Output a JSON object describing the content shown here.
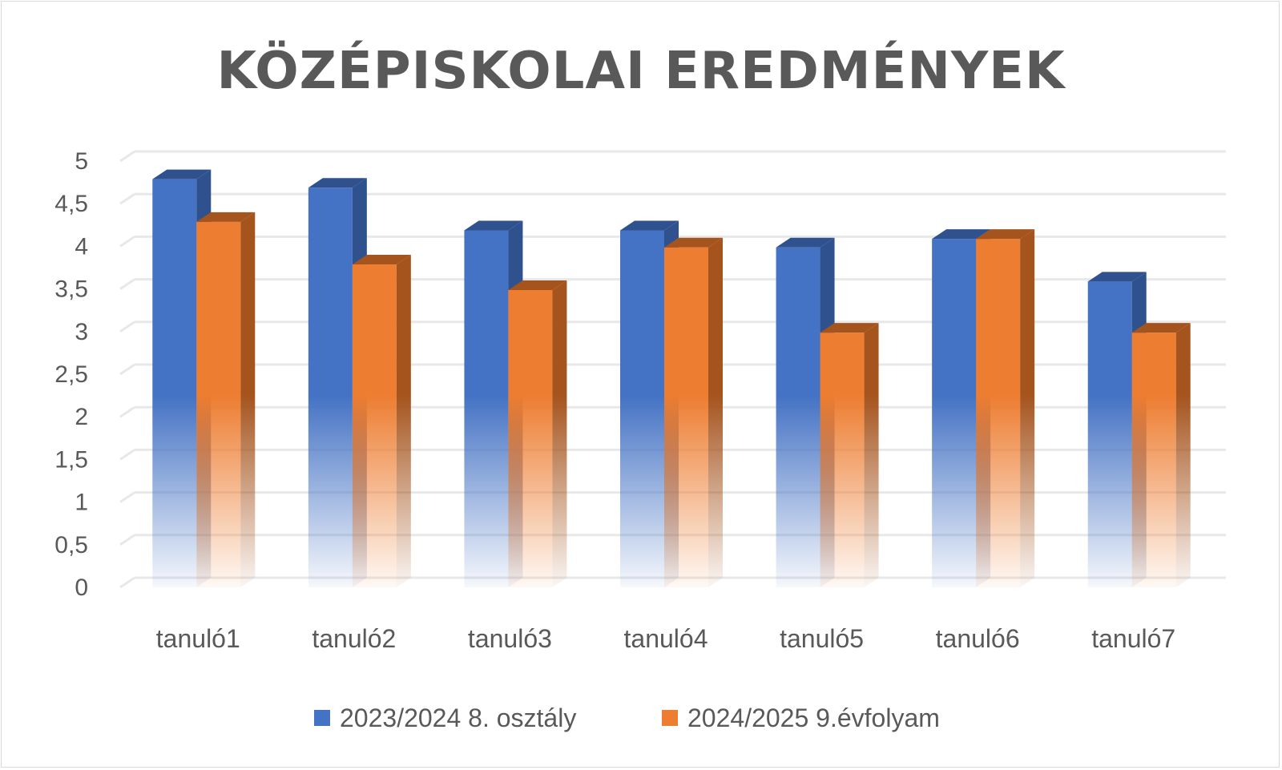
{
  "chart_data": {
    "type": "bar",
    "title": "KÖZÉPISKOLAI EREDMÉNYEK",
    "categories": [
      "tanuló1",
      "tanuló2",
      "tanuló3",
      "tanuló4",
      "tanuló5",
      "tanuló6",
      "tanuló7"
    ],
    "series": [
      {
        "name": "2023/2024 8. osztály",
        "color": "#4472c4",
        "side_color": "#2f528f",
        "values": [
          4.9,
          4.8,
          4.3,
          4.3,
          4.1,
          4.2,
          3.7
        ]
      },
      {
        "name": "2024/2025 9.évfolyam",
        "color": "#ed7d31",
        "side_color": "#a5541e",
        "values": [
          4.4,
          3.9,
          3.6,
          4.1,
          3.1,
          4.2,
          3.1
        ]
      }
    ],
    "yticks": [
      "0",
      "0,5",
      "1",
      "1,5",
      "2",
      "2,5",
      "3",
      "3,5",
      "4",
      "4,5",
      "5"
    ],
    "ylim": [
      0,
      5
    ],
    "grid": true,
    "legend": "bottom",
    "xlabel": "",
    "ylabel": ""
  }
}
